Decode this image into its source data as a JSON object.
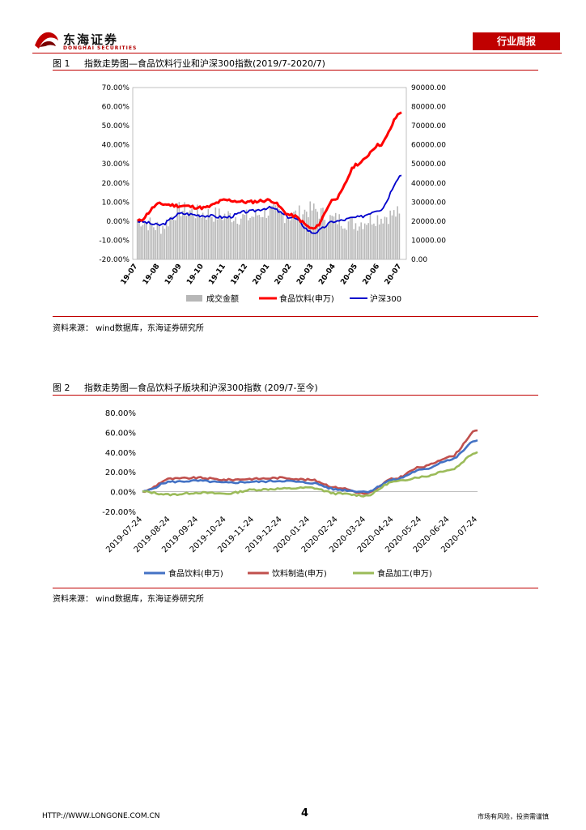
{
  "header": {
    "company": "东海证券",
    "company_en": "DONGHAI SECURITIES",
    "report_type": "行业周报"
  },
  "figure1": {
    "caption_num": "图 1",
    "caption": "指数走势图—食品饮料行业和沪深300指数(2019/7-2020/7)",
    "source": "资料来源： wind数据库，东海证券研究所"
  },
  "figure2": {
    "caption_num": "图 2",
    "caption": "指数走势图—食品饮料子版块和沪深300指数 (209/7-至今)",
    "source": "资料来源： wind数据库，东海证券研究所"
  },
  "footer": {
    "url": "HTTP://WWW.LONGONE.COM.CN",
    "page": "4",
    "note": "市场有风险，投资需谨慎"
  },
  "colors": {
    "brand_red": "#c00000",
    "volume": "#b7b7b7",
    "food_index": "#ff0000",
    "hs300": "#0000cc",
    "sub_food": "#4472c4",
    "sub_beverage": "#c0504d",
    "sub_processing": "#9bbb59"
  },
  "chart_data": [
    {
      "type": "bar+line",
      "title": "",
      "x_ticks": [
        "19-07",
        "19-08",
        "19-09",
        "19-10",
        "19-11",
        "19-12",
        "20-01",
        "20-02",
        "20-03",
        "20-04",
        "20-05",
        "20-06",
        "20-07"
      ],
      "y_left_ticks": [
        "70.00%",
        "60.00%",
        "50.00%",
        "40.00%",
        "30.00%",
        "20.00%",
        "10.00%",
        "0.00%",
        "-10.00%",
        "-20.00%"
      ],
      "y_right_ticks": [
        "90000.00",
        "80000.00",
        "70000.00",
        "60000.00",
        "50000.00",
        "40000.00",
        "30000.00",
        "20000.00",
        "10000.00",
        "0.00"
      ],
      "ylim_left": [
        -20,
        70
      ],
      "ylim_right": [
        0,
        90000
      ],
      "legend": [
        "成交金额",
        "食品饮料(申万)",
        "沪深300"
      ],
      "legend_position": "bottom",
      "series": [
        {
          "name": "成交金额",
          "axis": "right",
          "kind": "bar",
          "values": [
            21000,
            17000,
            26000,
            24000,
            23000,
            22000,
            25000,
            23000,
            26000,
            21000,
            19000,
            22000,
            24000
          ]
        },
        {
          "name": "食品饮料(申万)",
          "axis": "left",
          "kind": "line",
          "values": [
            0,
            9,
            8,
            7,
            11,
            10,
            11,
            3,
            -4,
            12,
            30,
            40,
            57
          ]
        },
        {
          "name": "沪深300",
          "axis": "left",
          "kind": "line",
          "values": [
            0,
            -2,
            4,
            3,
            2,
            5,
            7,
            2,
            -6,
            0,
            2,
            6,
            24
          ]
        }
      ]
    },
    {
      "type": "line",
      "title": "",
      "x_ticks": [
        "2019-07-24",
        "2019-08-24",
        "2019-09-24",
        "2019-10-24",
        "2019-11-24",
        "2019-12-24",
        "2020-01-24",
        "2020-02-24",
        "2020-03-24",
        "2020-04-24",
        "2020-05-24",
        "2020-06-24",
        "2020-07-24"
      ],
      "y_ticks": [
        "80.00%",
        "60.00%",
        "40.00%",
        "20.00%",
        "0.00%",
        "-20.00%"
      ],
      "ylim": [
        -20,
        80
      ],
      "legend": [
        "食品饮料(申万)",
        "饮料制造(申万)",
        "食品加工(申万)"
      ],
      "legend_position": "bottom",
      "series": [
        {
          "name": "食品饮料(申万)",
          "values": [
            0,
            10,
            11,
            9,
            10,
            11,
            9,
            2,
            0,
            12,
            22,
            32,
            52
          ]
        },
        {
          "name": "饮料制造(申万)",
          "values": [
            0,
            13,
            14,
            12,
            13,
            14,
            12,
            4,
            -2,
            13,
            25,
            35,
            62
          ]
        },
        {
          "name": "食品加工(申万)",
          "values": [
            0,
            -3,
            -1,
            -2,
            2,
            3,
            4,
            -2,
            -4,
            10,
            15,
            22,
            40
          ]
        }
      ]
    }
  ]
}
